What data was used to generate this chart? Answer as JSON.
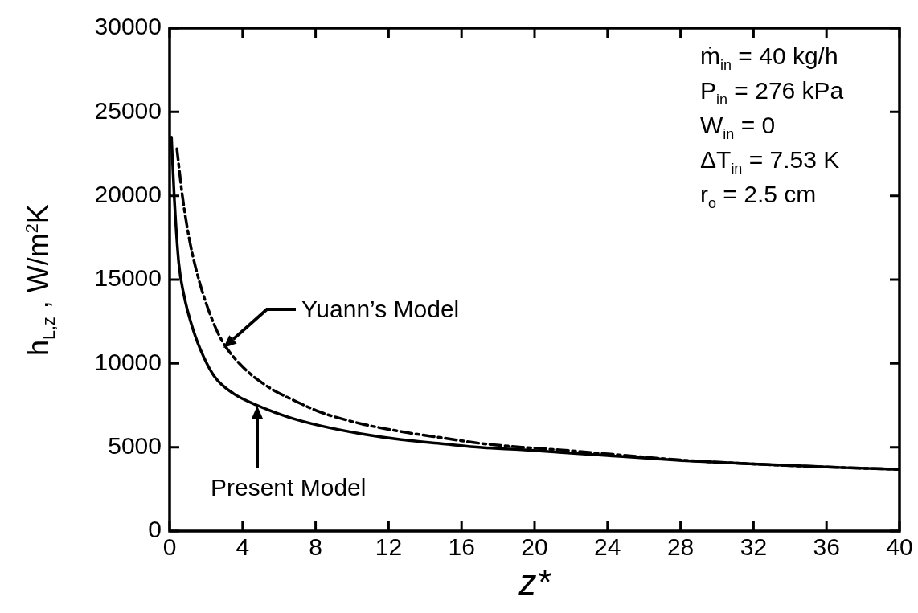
{
  "chart_data": {
    "type": "line",
    "xlabel": "z*",
    "ylabel": "h$_{L,z}$ , W/m$^{2}$K",
    "xlim": [
      0,
      40
    ],
    "xticks": [
      0,
      4,
      8,
      12,
      16,
      20,
      24,
      28,
      32,
      36,
      40
    ],
    "ylim": [
      0,
      30000
    ],
    "yticks": [
      0,
      5000,
      10000,
      15000,
      20000,
      25000,
      30000
    ],
    "marker": "none",
    "series": [
      {
        "color": "#000000",
        "line_style": "solid",
        "x": [
          0.1,
          0.25,
          0.5,
          0.8,
          1.15,
          1.7,
          2.47,
          3.5,
          4.8,
          6.5,
          8.3,
          10.5,
          12.7,
          15,
          17.1,
          19.3,
          21.5,
          24,
          28.1,
          32,
          37,
          40
        ],
        "values": [
          23500,
          20000,
          16000,
          14000,
          12500,
          10800,
          9200,
          8200,
          7500,
          6800,
          6270,
          5800,
          5450,
          5200,
          4980,
          4850,
          4690,
          4500,
          4210,
          4000,
          3780,
          3680
        ]
      },
      {
        "color": "#000000",
        "line_style": "dashed",
        "x": [
          0.4,
          0.7,
          1.1,
          1.6,
          2.3,
          2.9,
          4,
          5.4,
          6.8,
          8.3,
          10.5,
          12.7,
          15,
          17.1,
          19.3,
          21.5,
          24,
          28.1,
          32,
          37,
          40
        ],
        "values": [
          22800,
          20000,
          17300,
          15000,
          12700,
          11300,
          9800,
          8600,
          7800,
          7080,
          6400,
          5930,
          5550,
          5220,
          5000,
          4830,
          4600,
          4230,
          4000,
          3780,
          3680
        ]
      }
    ],
    "annotations": [
      "Yuann’s Model",
      "Present Model",
      "ṁ$_{in}$ = 40 kg/h",
      "P$_{in}$ = 276 kPa",
      "W$_{in}$ = 0",
      "ΔT$_{in}$ = 7.53 K",
      "r$_{o}$ = 2.5 cm"
    ]
  }
}
